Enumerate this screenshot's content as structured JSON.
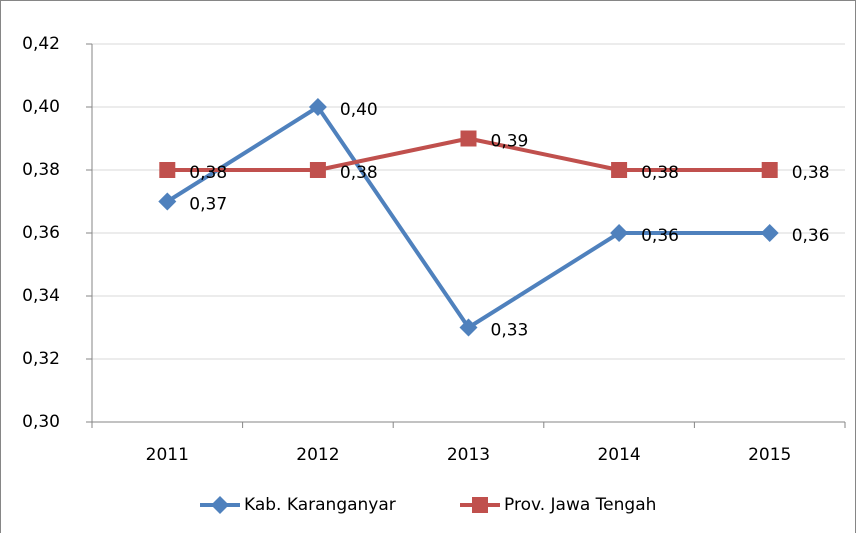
{
  "chart_data": {
    "type": "line",
    "categories": [
      "2011",
      "2012",
      "2013",
      "2014",
      "2015"
    ],
    "series": [
      {
        "name": "Kab. Karanganyar",
        "color": "#4f81bd",
        "marker": "diamond",
        "values": [
          0.37,
          0.4,
          0.33,
          0.36,
          0.36
        ],
        "value_labels": [
          "0,37",
          "0,40",
          "0,33",
          "0,36",
          "0,36"
        ]
      },
      {
        "name": "Prov. Jawa Tengah",
        "color": "#c0504d",
        "marker": "square",
        "values": [
          0.38,
          0.38,
          0.39,
          0.38,
          0.38
        ],
        "value_labels": [
          "0,38",
          "0,38",
          "0,39",
          "0,38",
          "0,38"
        ]
      }
    ],
    "ylim": [
      0.3,
      0.42
    ],
    "yticks": [
      {
        "value": 0.3,
        "label": "0,30"
      },
      {
        "value": 0.32,
        "label": "0,32"
      },
      {
        "value": 0.34,
        "label": "0,34"
      },
      {
        "value": 0.36,
        "label": "0,36"
      },
      {
        "value": 0.38,
        "label": "0,38"
      },
      {
        "value": 0.4,
        "label": "0,40"
      },
      {
        "value": 0.42,
        "label": "0,42"
      }
    ],
    "grid": true,
    "legend": "bottom"
  }
}
